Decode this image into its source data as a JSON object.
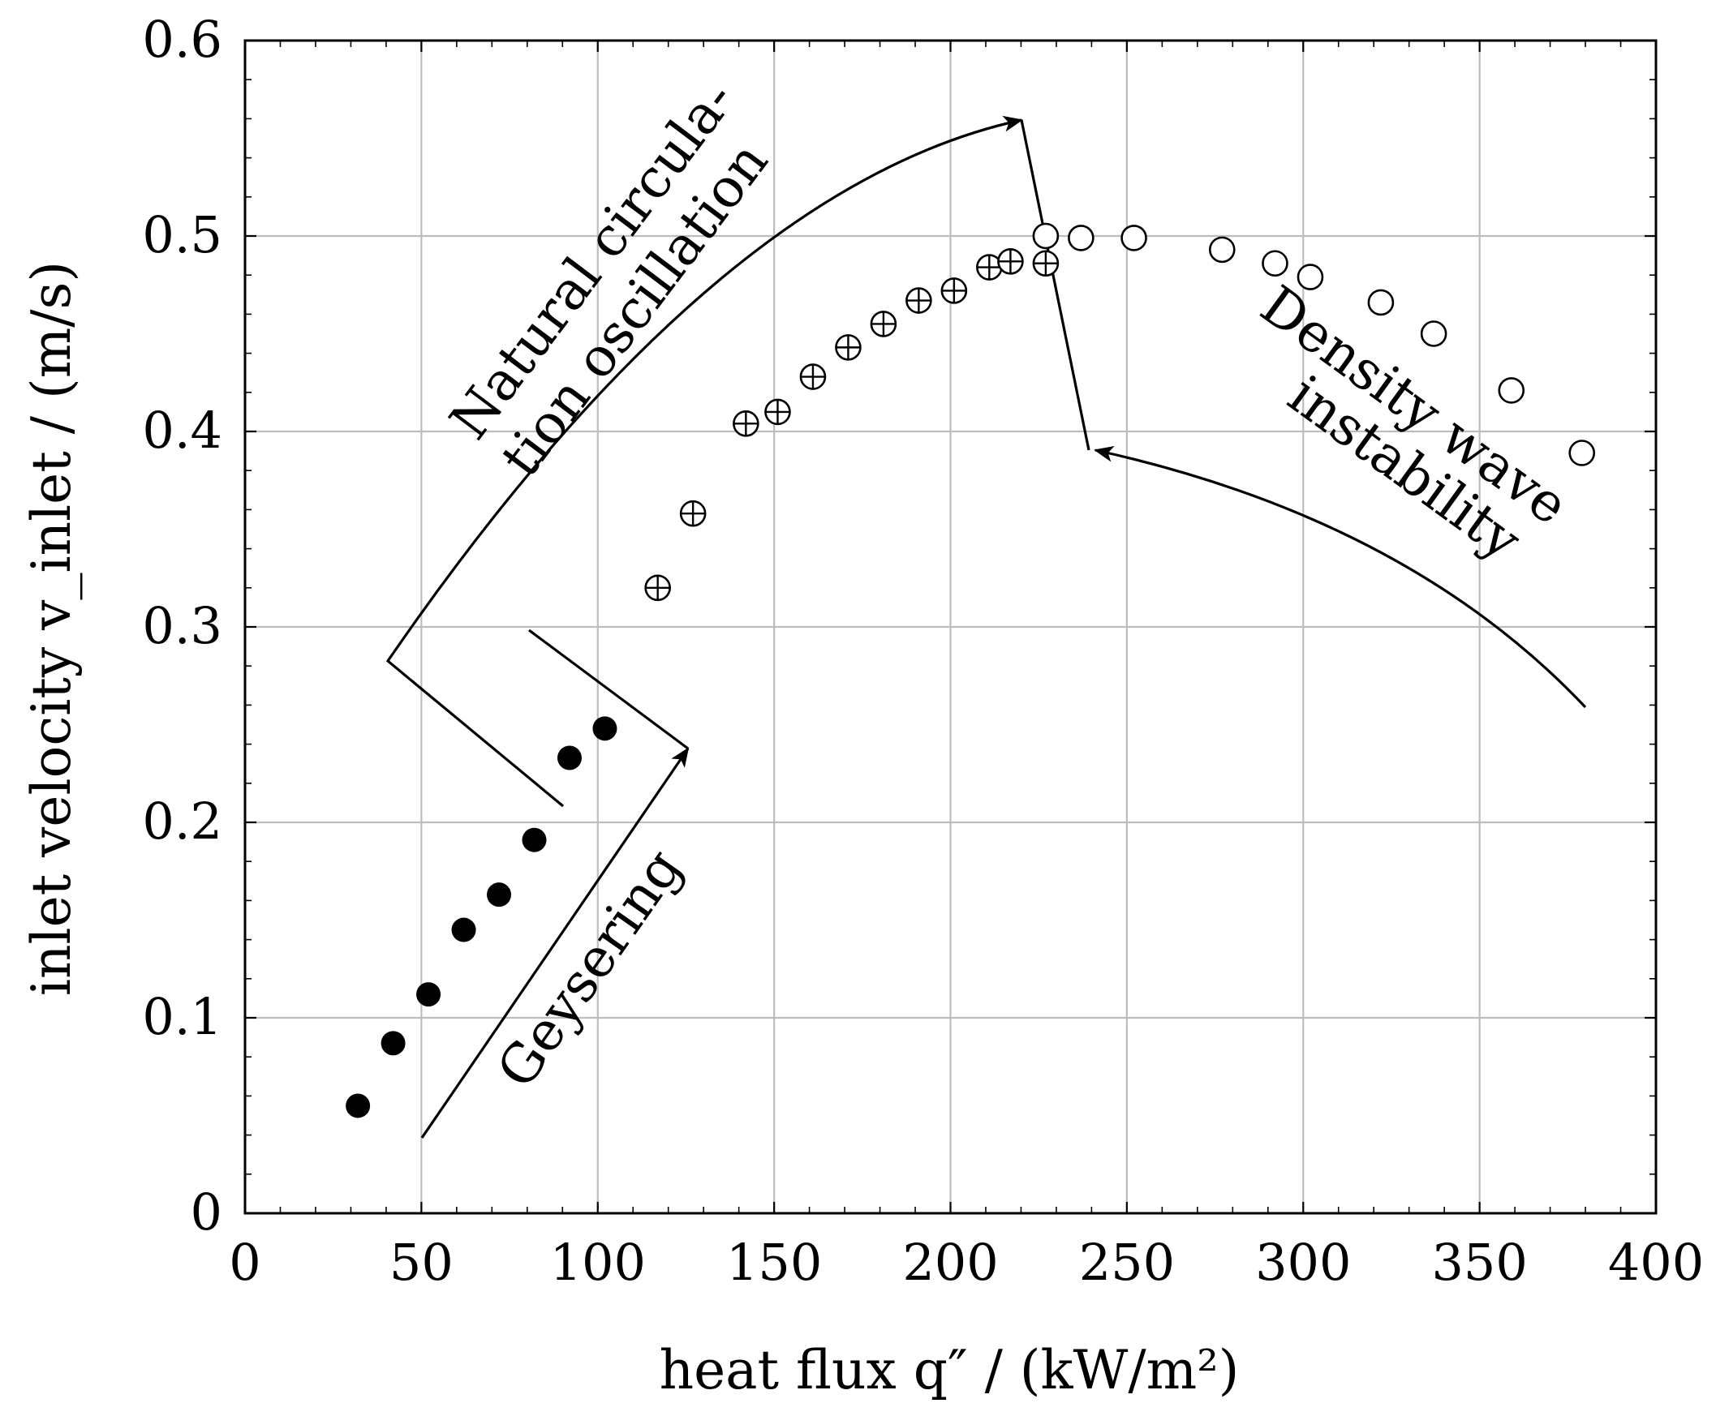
{
  "chart_data": {
    "type": "scatter",
    "title": "",
    "xlabel": "heat flux q″ / (kW/m²)",
    "ylabel": "inlet velocity v_inlet / (m/s)",
    "xlim": [
      0,
      400
    ],
    "ylim": [
      0,
      0.6
    ],
    "x_ticks": [
      0,
      50,
      100,
      150,
      200,
      250,
      300,
      350,
      400
    ],
    "y_ticks": [
      0,
      0.1,
      0.2,
      0.3,
      0.4,
      0.5,
      0.6
    ],
    "x_tick_labels": [
      "0",
      "50",
      "100",
      "150",
      "200",
      "250",
      "300",
      "350",
      "400"
    ],
    "y_tick_labels": [
      "0",
      "0.1",
      "0.2",
      "0.3",
      "0.4",
      "0.5",
      "0.6"
    ],
    "grid": true,
    "series": [
      {
        "name": "filled",
        "marker": "filled-circle",
        "x": [
          32,
          42,
          52,
          62,
          72,
          82,
          92,
          102
        ],
        "y": [
          0.055,
          0.087,
          0.112,
          0.145,
          0.163,
          0.191,
          0.233,
          0.248
        ]
      },
      {
        "name": "crossed",
        "marker": "circle-plus",
        "x": [
          117,
          127,
          142,
          151,
          161,
          171,
          181,
          191,
          201,
          211,
          217,
          227
        ],
        "y": [
          0.32,
          0.358,
          0.404,
          0.41,
          0.428,
          0.443,
          0.455,
          0.467,
          0.472,
          0.484,
          0.487,
          0.486
        ]
      },
      {
        "name": "open",
        "marker": "open-circle",
        "x": [
          227,
          237,
          252,
          277,
          292,
          302,
          322,
          337,
          359,
          379
        ],
        "y": [
          0.5,
          0.499,
          0.499,
          0.493,
          0.486,
          0.479,
          0.466,
          0.45,
          0.421,
          0.389
        ]
      }
    ],
    "annotations": {
      "natural_line1": "Natural circula-",
      "natural_line2": "tion oscillation",
      "geysering": "Geysering",
      "density_line1": "Density wave",
      "density_line2": "instability"
    }
  }
}
